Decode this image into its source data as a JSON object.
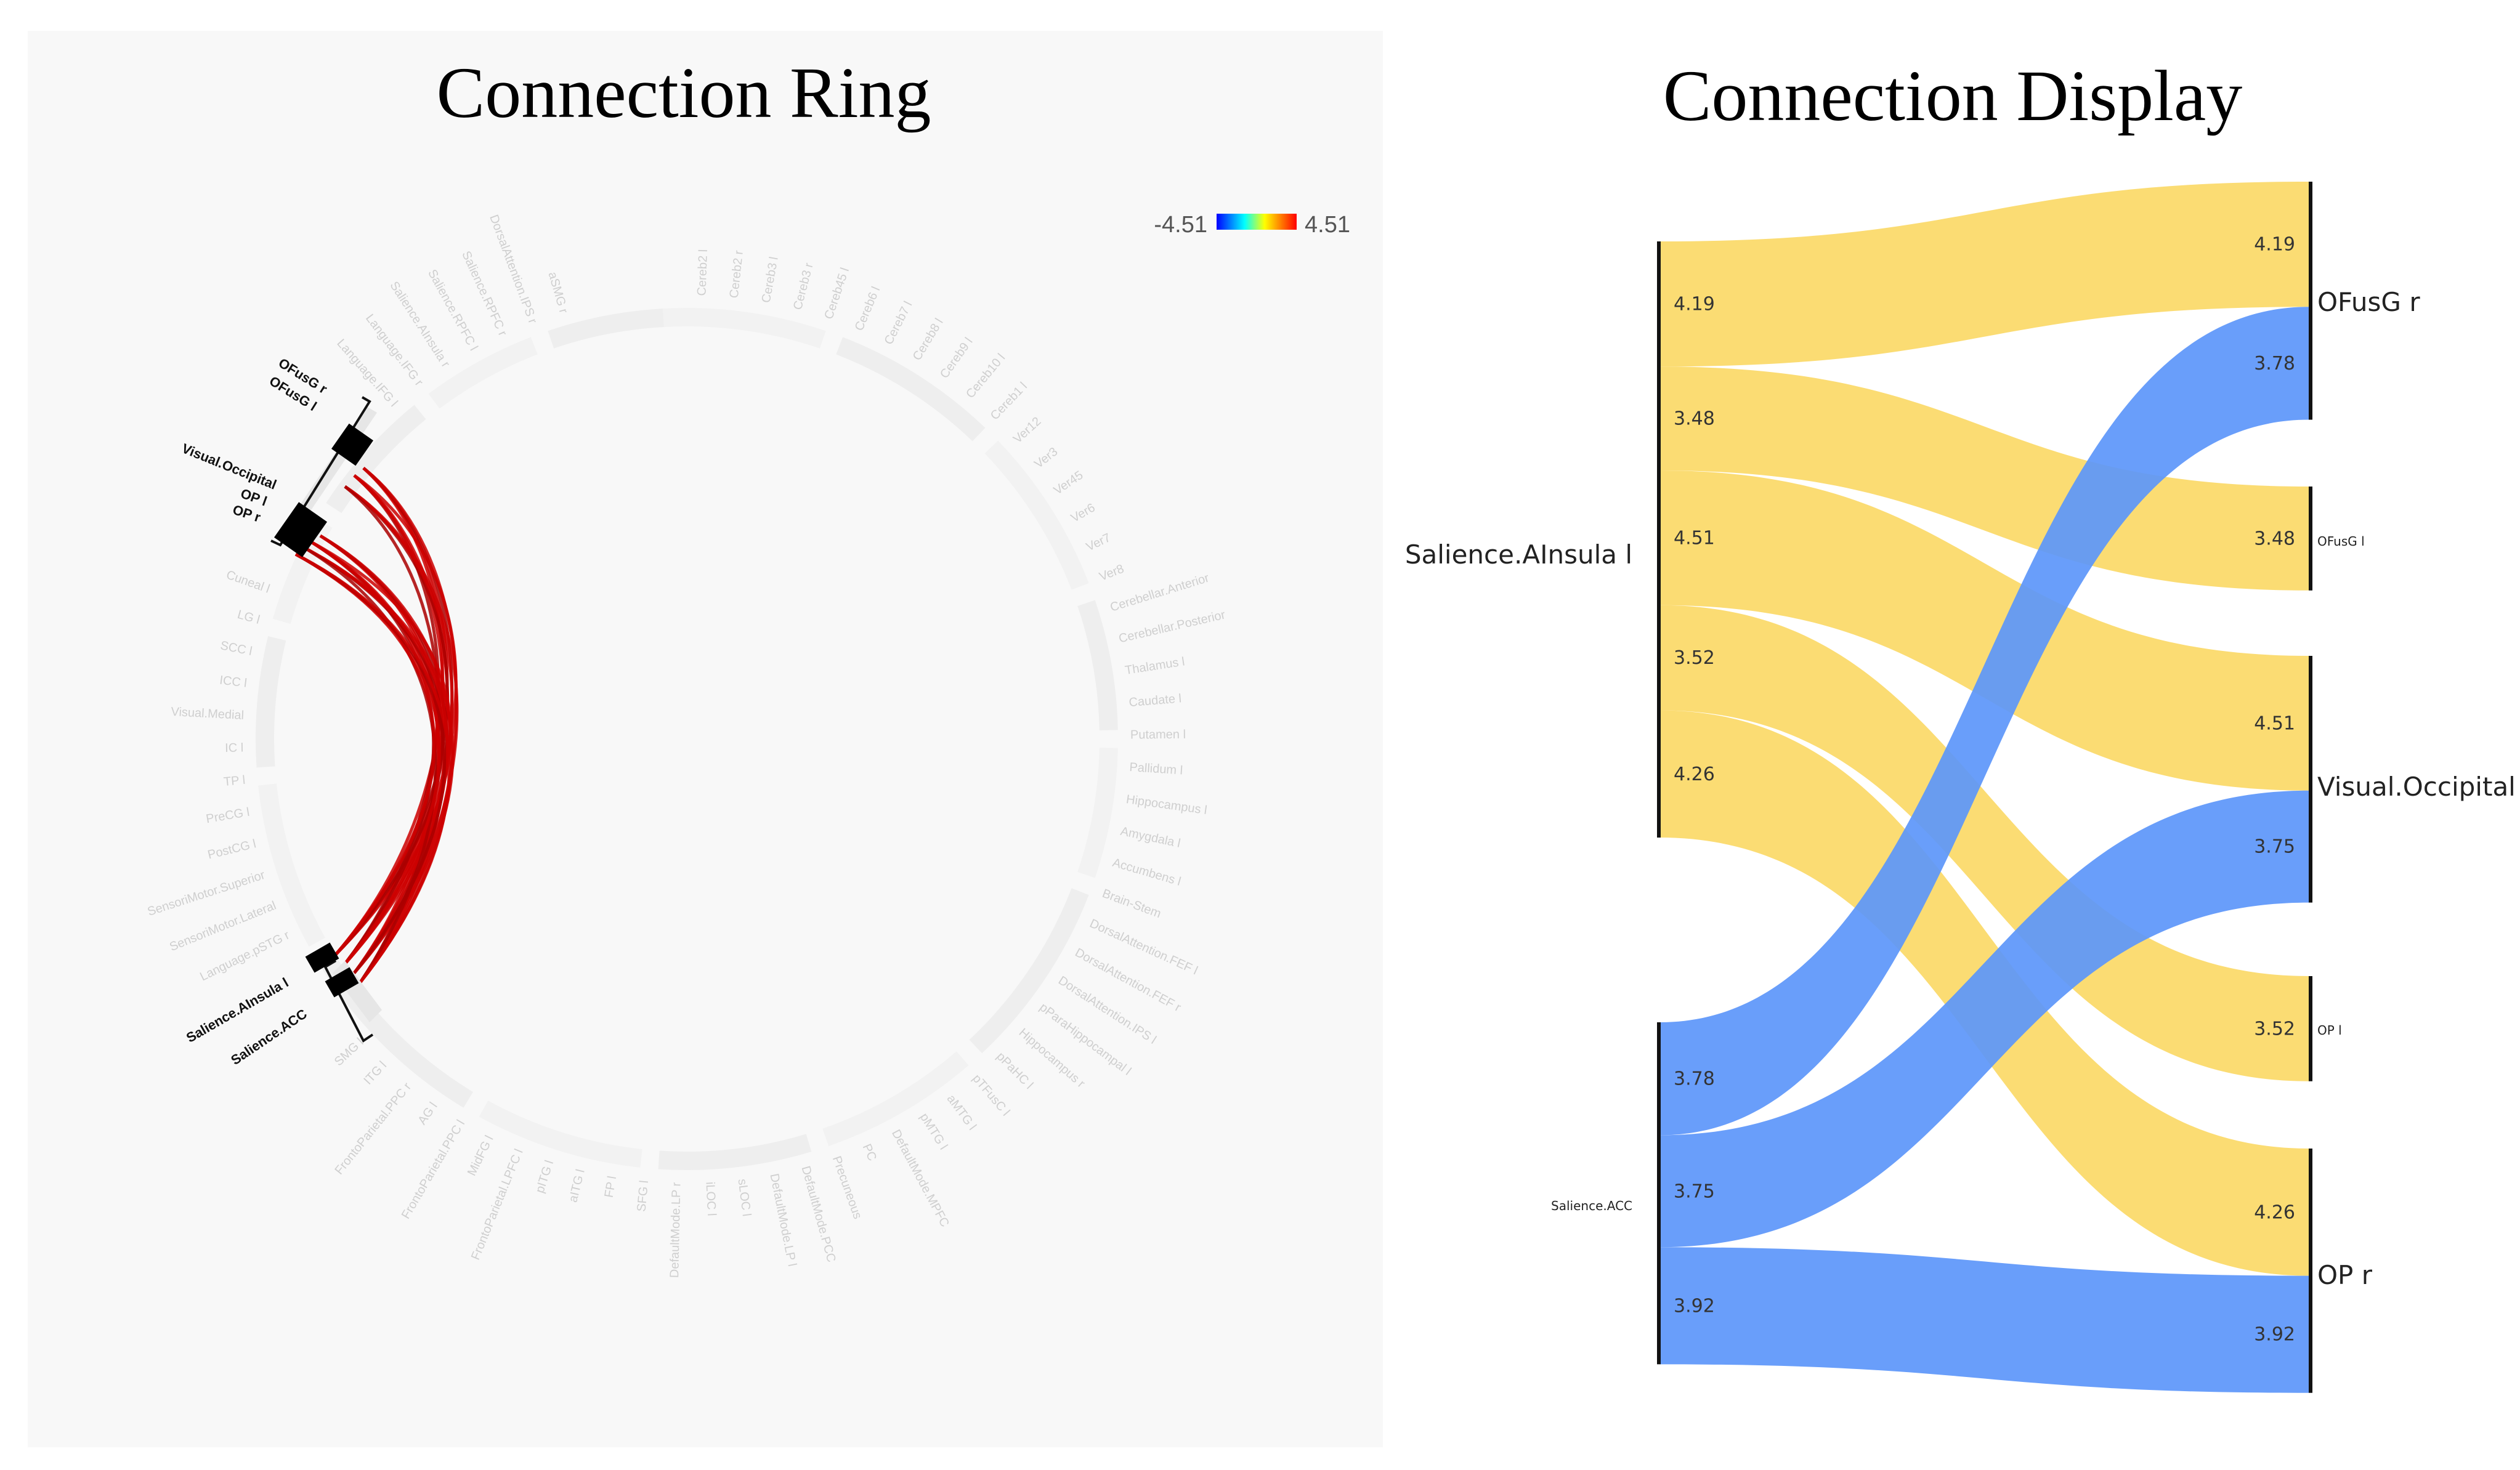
{
  "left_panel": {
    "title": "Connection Ring",
    "scale": {
      "min_label": "-4.51",
      "max_label": "4.51",
      "gradient": [
        "#0000ff",
        "#00ffff",
        "#ffff00",
        "#ff0000"
      ]
    },
    "highlight_top": [
      "OFusG r",
      "OFusG l",
      "Visual.Occipital",
      "OP l",
      "OP r"
    ],
    "highlight_bottom": [
      "Salience.AInsula l",
      "Salience.ACC"
    ],
    "edge_color": "#cc0000",
    "faint_labels": [
      "Cereb2 l",
      "Cereb2 r",
      "Cereb3 l",
      "Cereb3 r",
      "Cereb45 l",
      "Cereb6 l",
      "Cereb7 l",
      "Cereb8 l",
      "Cereb9 l",
      "Cereb10 l",
      "Cereb1 l",
      "Ver12",
      "Ver3",
      "Ver45",
      "Ver6",
      "Ver7",
      "Ver8",
      "Cerebellar.Anterior",
      "Cerebellar.Posterior",
      "Thalamus l",
      "Caudate l",
      "Putamen l",
      "Pallidum l",
      "Hippocampus l",
      "Amygdala l",
      "Accumbens l",
      "Brain-Stem",
      "DorsalAttention.FEF l",
      "DorsalAttention.FEF r",
      "DorsalAttention.IPS l",
      "pParaHippocampal l",
      "Hippocampus r",
      "pPaHC l",
      "pTFusC l",
      "aMTG l",
      "pMTG l",
      "DefaultMode.MPFC",
      "PC",
      "Precuneous",
      "DefaultMode.PCC",
      "DefaultMode.LP l",
      "sLOC l",
      "iLOC l",
      "DefaultMode.LP r",
      "SFG l",
      "FP l",
      "aITG l",
      "pITG l",
      "FrontoParietal.LPFC l",
      "MidFG l",
      "FrontoParietal.PPC l",
      "AG l",
      "FrontoParietal.PPC r",
      "ITG l",
      "SMG l",
      "FrontoParietal.LPFC r",
      "toITG l",
      "Language.pSTG l",
      "Language.pSTG r",
      "SensoriMotor.Lateral",
      "SensoriMotor.Superior",
      "PostCG l",
      "PreCG l",
      "TP l",
      "IC l",
      "Visual.Medial",
      "ICC l",
      "SCC l",
      "LG l",
      "Cuneal l",
      "Calc l",
      "OFusG",
      "Salience.SMG l",
      "pSMG l",
      "IFG tri l",
      "IFG oper l",
      "Language.IFG l",
      "Language.IFG r",
      "Salience.AInsula r",
      "Salience.RPFC l",
      "Salience.RPFC r",
      "DorsalAttention.IPS r",
      "aSMG r"
    ]
  },
  "right_panel": {
    "title": "Connection Display",
    "colors": {
      "insula": "#fbda6b",
      "acc": "#5c96fa",
      "bar": "#111111"
    },
    "sources": [
      {
        "label": "Salience.AInsula l"
      },
      {
        "label": "Salience.ACC"
      }
    ],
    "targets": [
      {
        "label": "OFusG r"
      },
      {
        "label": "OFusG l"
      },
      {
        "label": "Visual.Occipital"
      },
      {
        "label": "OP l"
      },
      {
        "label": "OP r"
      }
    ],
    "links": [
      {
        "source": "Salience.AInsula l",
        "target": "OFusG r",
        "value": "4.19"
      },
      {
        "source": "Salience.AInsula l",
        "target": "OFusG l",
        "value": "3.48"
      },
      {
        "source": "Salience.AInsula l",
        "target": "Visual.Occipital",
        "value": "4.51"
      },
      {
        "source": "Salience.AInsula l",
        "target": "OP l",
        "value": "3.52"
      },
      {
        "source": "Salience.AInsula l",
        "target": "OP r",
        "value": "4.26"
      },
      {
        "source": "Salience.ACC",
        "target": "OFusG r",
        "value": "3.78"
      },
      {
        "source": "Salience.ACC",
        "target": "Visual.Occipital",
        "value": "3.75"
      },
      {
        "source": "Salience.ACC",
        "target": "OP r",
        "value": "3.92"
      }
    ]
  }
}
